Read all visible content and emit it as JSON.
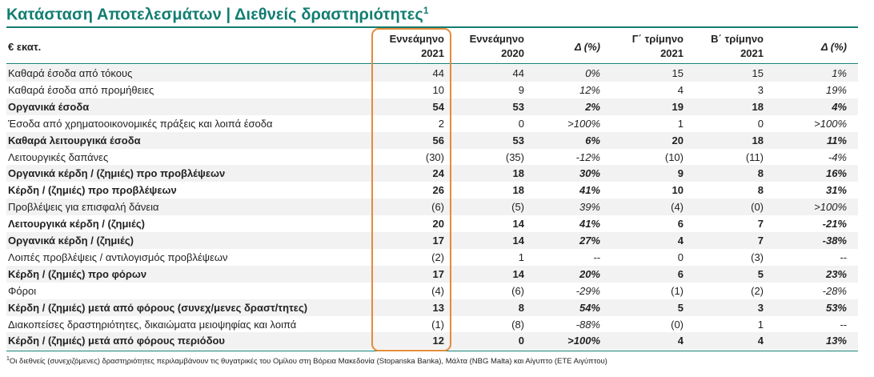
{
  "title": "Κατάσταση Αποτελεσμάτων | Διεθνείς δραστηριότητες",
  "title_sup": "1",
  "header": {
    "unit": "€ εκατ.",
    "col1": [
      "Εννεάμηνο",
      "2021"
    ],
    "col2": [
      "Εννεάμηνο",
      "2020"
    ],
    "col3": "Δ (%)",
    "col4": [
      "Γ΄ τρίμηνο",
      "2021"
    ],
    "col5": [
      "Β΄ τρίμηνο",
      "2021"
    ],
    "col6": "Δ (%)"
  },
  "rows": [
    {
      "label": "Καθαρά έσοδα από τόκους",
      "v1": "44",
      "v2": "44",
      "d1": "0%",
      "v3": "15",
      "v4": "15",
      "d2": "1%",
      "bold": false
    },
    {
      "label": "Καθαρά έσοδα από προμήθειες",
      "v1": "10",
      "v2": "9",
      "d1": "12%",
      "v3": "4",
      "v4": "3",
      "d2": "19%",
      "bold": false
    },
    {
      "label": "Οργανικά έσοδα",
      "v1": "54",
      "v2": "53",
      "d1": "2%",
      "v3": "19",
      "v4": "18",
      "d2": "4%",
      "bold": true
    },
    {
      "label": "Έσοδα από χρηματοοικονομικές πράξεις και λοιπά έσοδα",
      "v1": "2",
      "v2": "0",
      "d1": ">100%",
      "v3": "1",
      "v4": "0",
      "d2": ">100%",
      "bold": false
    },
    {
      "label": "Καθαρά λειτουργικά έσοδα",
      "v1": "56",
      "v2": "53",
      "d1": "6%",
      "v3": "20",
      "v4": "18",
      "d2": "11%",
      "bold": true
    },
    {
      "label": "Λειτουργικές δαπάνες",
      "v1": "(30)",
      "v2": "(35)",
      "d1": "-12%",
      "v3": "(10)",
      "v4": "(11)",
      "d2": "-4%",
      "bold": false
    },
    {
      "label": "Οργανικά κέρδη / (ζημιές) προ προβλέψεων",
      "v1": "24",
      "v2": "18",
      "d1": "30%",
      "v3": "9",
      "v4": "8",
      "d2": "16%",
      "bold": true
    },
    {
      "label": "Κέρδη / (ζημιές) προ προβλέψεων",
      "v1": "26",
      "v2": "18",
      "d1": "41%",
      "v3": "10",
      "v4": "8",
      "d2": "31%",
      "bold": true
    },
    {
      "label": "Προβλέψεις για επισφαλή δάνεια",
      "v1": "(6)",
      "v2": "(5)",
      "d1": "39%",
      "v3": "(4)",
      "v4": "(0)",
      "d2": ">100%",
      "bold": false
    },
    {
      "label": "Λειτουργικά κέρδη / (ζημιές)",
      "v1": "20",
      "v2": "14",
      "d1": "41%",
      "v3": "6",
      "v4": "7",
      "d2": "-21%",
      "bold": true
    },
    {
      "label": "Οργανικά κέρδη / (ζημιές)",
      "v1": "17",
      "v2": "14",
      "d1": "27%",
      "v3": "4",
      "v4": "7",
      "d2": "-38%",
      "bold": true
    },
    {
      "label": "Λοιπές προβλέψεις / αντιλογισμός προβλέψεων",
      "v1": "(2)",
      "v2": "1",
      "d1": "--",
      "v3": "0",
      "v4": "(3)",
      "d2": "--",
      "bold": false
    },
    {
      "label": "Κέρδη / (ζημιές) προ φόρων",
      "v1": "17",
      "v2": "14",
      "d1": "20%",
      "v3": "6",
      "v4": "5",
      "d2": "23%",
      "bold": true
    },
    {
      "label": "Φόροι",
      "v1": "(4)",
      "v2": "(6)",
      "d1": "-29%",
      "v3": "(1)",
      "v4": "(2)",
      "d2": "-28%",
      "bold": false
    },
    {
      "label": "Κέρδη / (ζημιές) μετά από φόρους (συνεχ/μενες δραστ/τητες)",
      "v1": "13",
      "v2": "8",
      "d1": "54%",
      "v3": "5",
      "v4": "3",
      "d2": "53%",
      "bold": true
    },
    {
      "label": "Διακοπείσες δραστηριότητες, δικαιώματα μειοψηφίας και λοιπά",
      "v1": "(1)",
      "v2": "(8)",
      "d1": "-88%",
      "v3": "(0)",
      "v4": "1",
      "d2": "--",
      "bold": false
    },
    {
      "label": "Κέρδη / (ζημιές) μετά από φόρους περιόδου",
      "v1": "12",
      "v2": "0",
      "d1": ">100%",
      "v3": "4",
      "v4": "4",
      "d2": "13%",
      "bold": true
    }
  ],
  "footnote_sup": "1",
  "footnote": "Οι διεθνείς (συνεχιζόμενες) δραστηριότητες περιλαμβάνουν τις θυγατρικές του Ομίλου στη Βόρεια Μακεδονία (Stopanska Banka), Μάλτα (NBG Malta) και Αίγυπτο (ΕΤΕ Αιγύπτου)",
  "colors": {
    "title": "#127d71",
    "rule": "#127d71",
    "highlight_border": "#e38b3a",
    "shaded_row": "#f2f2f2"
  }
}
